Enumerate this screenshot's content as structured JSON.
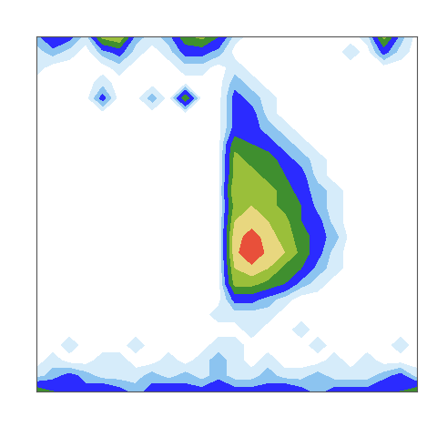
{
  "chart_data": {
    "type": "contour",
    "tick_labels": false,
    "levels": [
      0.5,
      1.5,
      2.5,
      4,
      5.5,
      7,
      8.5,
      11
    ],
    "colors": [
      "#d6ecfa",
      "#8cc4f0",
      "#2b2bff",
      "#3f8f2f",
      "#9abf3a",
      "#e8d77f",
      "#e8503a"
    ],
    "cells": [
      [
        2,
        4,
        3,
        1,
        6,
        7,
        2,
        1,
        2,
        5,
        6,
        4,
        1,
        0,
        0,
        0,
        0,
        0,
        0,
        0,
        1,
        6,
        2,
        0
      ],
      [
        1,
        2,
        1,
        0,
        2,
        3,
        1,
        0,
        1,
        3,
        3,
        2,
        0,
        0,
        0,
        0,
        0,
        0,
        0,
        1,
        0,
        3,
        1,
        0
      ],
      [
        1,
        0,
        0,
        0,
        0,
        1,
        0,
        0,
        0,
        1,
        1,
        0,
        1,
        0,
        0,
        0,
        0,
        0,
        0,
        0,
        0,
        0,
        0,
        0
      ],
      [
        0,
        0,
        0,
        0,
        1,
        0,
        0,
        0,
        0,
        0,
        0,
        0,
        2,
        1,
        0,
        0,
        0,
        0,
        0,
        0,
        0,
        0,
        0,
        0
      ],
      [
        0,
        0,
        0,
        0,
        3,
        0,
        0,
        2,
        0,
        5,
        0,
        0,
        3,
        2,
        1,
        0,
        0,
        0,
        0,
        0,
        0,
        0,
        0,
        0
      ],
      [
        0,
        0,
        0,
        0,
        0,
        0,
        0,
        0,
        0,
        0,
        0,
        0,
        3,
        3,
        1,
        0,
        0,
        0,
        0,
        0,
        0,
        0,
        0,
        0
      ],
      [
        0,
        0,
        0,
        0,
        0,
        0,
        0,
        0,
        0,
        0,
        0,
        0,
        3,
        3,
        2,
        1,
        0,
        0,
        0,
        0,
        0,
        0,
        0,
        0
      ],
      [
        0,
        0,
        0,
        0,
        0,
        0,
        0,
        0,
        0,
        0,
        0,
        0,
        5,
        4,
        3,
        2,
        1,
        0,
        0,
        0,
        0,
        0,
        0,
        0
      ],
      [
        0,
        0,
        0,
        0,
        0,
        0,
        0,
        0,
        0,
        0,
        0,
        0,
        6,
        5,
        5,
        3,
        2,
        1,
        0,
        0,
        0,
        0,
        0,
        0
      ],
      [
        0,
        0,
        0,
        0,
        0,
        0,
        0,
        0,
        0,
        0,
        0,
        0,
        6,
        6,
        5,
        4,
        3,
        1,
        0,
        0,
        0,
        0,
        0,
        0
      ],
      [
        0,
        0,
        0,
        0,
        0,
        0,
        0,
        0,
        0,
        0,
        0,
        0,
        7,
        6,
        6,
        5,
        3,
        2,
        1,
        0,
        0,
        0,
        0,
        0
      ],
      [
        0,
        0,
        0,
        0,
        0,
        0,
        0,
        0,
        0,
        0,
        0,
        0,
        6,
        7,
        6,
        5,
        4,
        2,
        1,
        0,
        0,
        0,
        0,
        0
      ],
      [
        0,
        0,
        0,
        0,
        0,
        0,
        0,
        0,
        0,
        0,
        0,
        0,
        7,
        8,
        7,
        6,
        4,
        3,
        1,
        0,
        0,
        0,
        0,
        0
      ],
      [
        0,
        0,
        0,
        0,
        0,
        0,
        0,
        0,
        0,
        0,
        0,
        0,
        8,
        9,
        8,
        6,
        5,
        3,
        2,
        0,
        0,
        0,
        0,
        0
      ],
      [
        0,
        0,
        0,
        0,
        0,
        0,
        0,
        0,
        0,
        0,
        0,
        0,
        8,
        10,
        8,
        7,
        5,
        3,
        1,
        0,
        0,
        0,
        0,
        0
      ],
      [
        0,
        0,
        0,
        0,
        0,
        0,
        0,
        0,
        0,
        0,
        0,
        0,
        7,
        8,
        7,
        5,
        4,
        2,
        1,
        0,
        0,
        0,
        0,
        0
      ],
      [
        0,
        0,
        0,
        0,
        0,
        0,
        0,
        0,
        0,
        0,
        0,
        0,
        6,
        6,
        5,
        4,
        2,
        1,
        0,
        0,
        0,
        0,
        0,
        0
      ],
      [
        0,
        0,
        0,
        0,
        0,
        0,
        0,
        0,
        0,
        0,
        0,
        0,
        3,
        3,
        2,
        1,
        0,
        0,
        0,
        0,
        0,
        0,
        0,
        0
      ],
      [
        0,
        0,
        0,
        0,
        0,
        0,
        0,
        0,
        0,
        0,
        0,
        1,
        1,
        1,
        1,
        0,
        0,
        0,
        0,
        0,
        0,
        0,
        0,
        0
      ],
      [
        0,
        0,
        0,
        0,
        0,
        0,
        0,
        0,
        0,
        0,
        0,
        0,
        0,
        1,
        0,
        0,
        1,
        0,
        0,
        0,
        0,
        0,
        0,
        0
      ],
      [
        0,
        0,
        1,
        0,
        0,
        0,
        1,
        0,
        0,
        0,
        0,
        1,
        1,
        0,
        0,
        0,
        0,
        1,
        0,
        0,
        0,
        0,
        1,
        0
      ],
      [
        0,
        1,
        0,
        0,
        1,
        1,
        0,
        0,
        1,
        0,
        1,
        2,
        1,
        0,
        1,
        0,
        0,
        0,
        1,
        0,
        1,
        0,
        0,
        0
      ],
      [
        1,
        2,
        3,
        2,
        1,
        1,
        1,
        2,
        1,
        2,
        1,
        2,
        1,
        1,
        2,
        1,
        1,
        2,
        1,
        1,
        1,
        2,
        3,
        1
      ],
      [
        5,
        4,
        3,
        3,
        4,
        3,
        2,
        3,
        4,
        3,
        3,
        4,
        3,
        3,
        3,
        4,
        3,
        2,
        3,
        3,
        3,
        4,
        4,
        5
      ]
    ]
  }
}
